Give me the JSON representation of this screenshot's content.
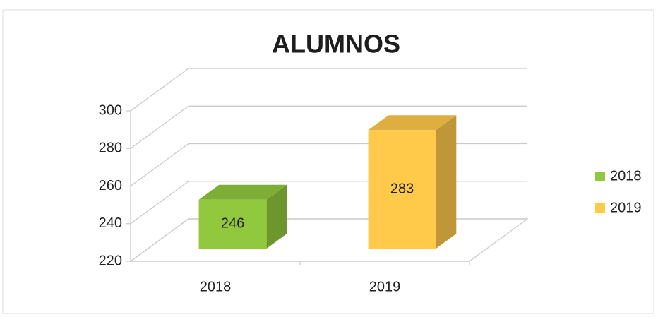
{
  "chart_data": {
    "type": "bar3d",
    "title": "ALUMNOS",
    "categories": [
      "2018",
      "2019"
    ],
    "series": [
      {
        "name": "2018",
        "color": "#92c83e",
        "values": [
          246,
          null
        ]
      },
      {
        "name": "2019",
        "color": "#ffc94a",
        "values": [
          null,
          283
        ]
      }
    ],
    "ylim": [
      220,
      300
    ],
    "yticks": [
      220,
      240,
      260,
      280,
      300
    ],
    "grid": true,
    "legend": "right"
  }
}
